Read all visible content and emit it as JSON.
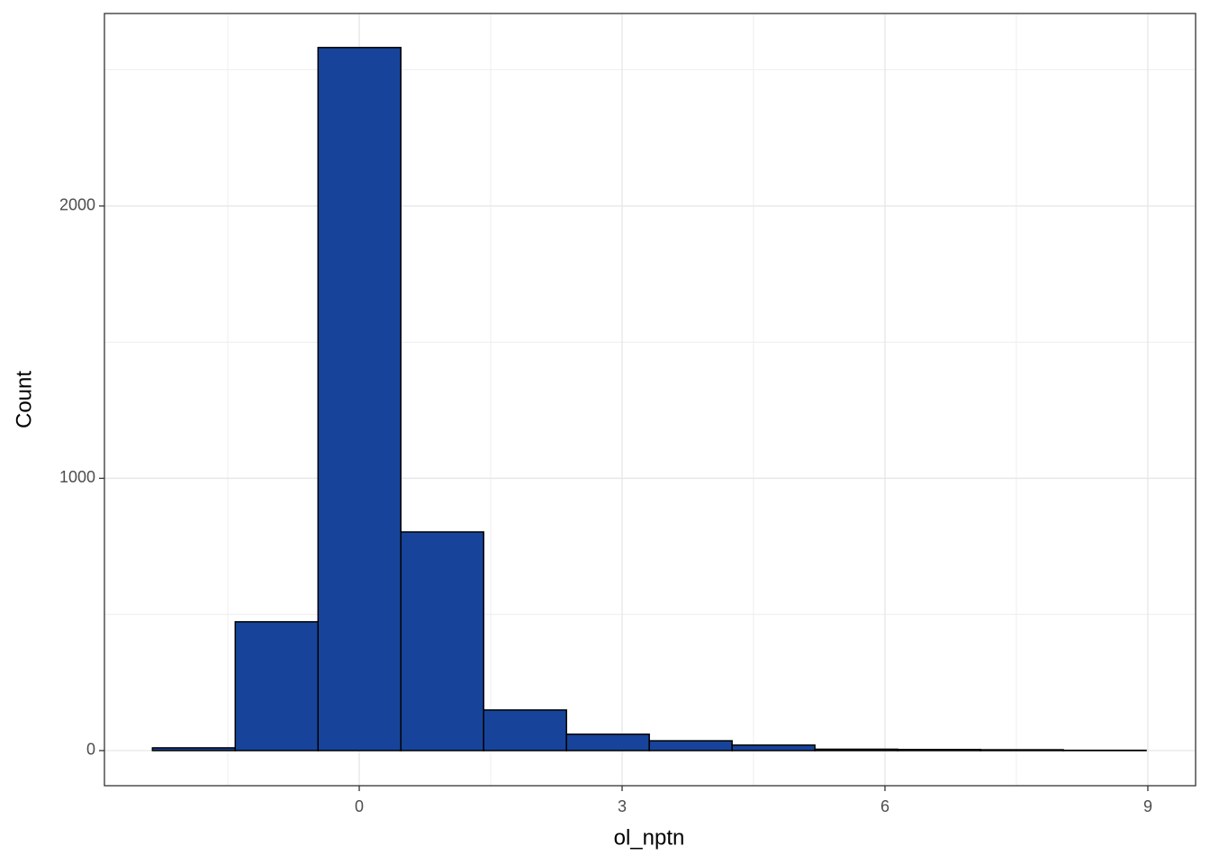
{
  "chart_data": {
    "type": "histogram",
    "x_label": "ol_nptn",
    "y_label": "Count",
    "bins": [
      -2.36,
      -1.415,
      -0.47,
      0.475,
      1.42,
      2.365,
      3.31,
      4.255,
      5.2,
      6.145,
      7.09,
      8.035,
      8.98
    ],
    "values": [
      10,
      473,
      2582,
      803,
      149,
      60,
      36,
      20,
      5,
      4,
      3,
      1
    ],
    "color": "#17449a",
    "edge_color": "#000000",
    "xlim": [
      -2.908,
      9.545
    ],
    "xticks": [
      0,
      3,
      6,
      9
    ],
    "x_minor_ticks": [
      -1.5,
      1.5,
      4.5,
      7.5
    ],
    "ylim": [
      -129,
      2707
    ],
    "yticks": [
      0,
      1000,
      2000
    ],
    "y_minor_ticks": [
      500,
      1500,
      2500
    ],
    "grid": true
  }
}
